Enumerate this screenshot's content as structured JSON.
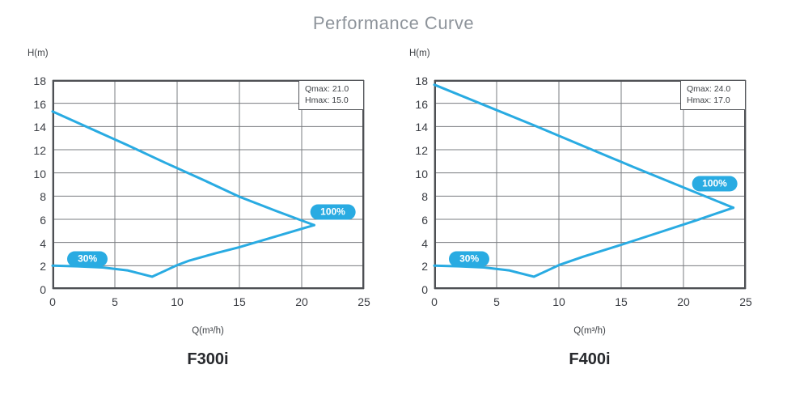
{
  "page": {
    "title": "Performance Curve"
  },
  "colors": {
    "accent_blue": "#29abe2",
    "grid_line": "#7a7c80",
    "plot_border": "#4e5054",
    "tick_text": "#3b3e44",
    "title_gray": "#8e949b"
  },
  "charts": [
    {
      "name": "F300i",
      "y_axis_label": "H(m)",
      "x_axis_label": "Q(m³/h)",
      "info_box": {
        "qmax_text": "Qmax: 21.0",
        "hmax_text": "Hmax: 15.0"
      },
      "chart_data": {
        "type": "line",
        "title": "F300i",
        "xlabel": "Q(m³/h)",
        "ylabel": "H(m)",
        "xlim": [
          0,
          25
        ],
        "ylim": [
          0,
          18
        ],
        "x_ticks": [
          0,
          5,
          10,
          15,
          20,
          25
        ],
        "y_ticks": [
          0,
          2,
          4,
          6,
          8,
          10,
          12,
          14,
          16,
          18
        ],
        "grid": true,
        "qmax": 21.0,
        "hmax": 15.0,
        "series": [
          {
            "name": "100%",
            "points": [
              [
                0,
                15.3
              ],
              [
                3,
                13.85
              ],
              [
                6,
                12.4
              ],
              [
                9,
                10.9
              ],
              [
                12,
                9.45
              ],
              [
                15,
                7.95
              ],
              [
                18,
                6.7
              ],
              [
                21,
                5.5
              ]
            ]
          },
          {
            "name": "30%",
            "points": [
              [
                0,
                2.0
              ],
              [
                2,
                1.95
              ],
              [
                4,
                1.85
              ],
              [
                6,
                1.6
              ],
              [
                8,
                1.05
              ],
              [
                9,
                1.55
              ],
              [
                10,
                2.05
              ],
              [
                11,
                2.45
              ],
              [
                13,
                3.05
              ],
              [
                15,
                3.6
              ],
              [
                18,
                4.55
              ],
              [
                21,
                5.5
              ]
            ]
          }
        ],
        "annotations": [
          {
            "label": "30%",
            "x": 2.8,
            "y": 2.6
          },
          {
            "label": "100%",
            "x": 22.5,
            "y": 6.6
          }
        ]
      }
    },
    {
      "name": "F400i",
      "y_axis_label": "H(m)",
      "x_axis_label": "Q(m³/h)",
      "info_box": {
        "qmax_text": "Qmax: 24.0",
        "hmax_text": "Hmax: 17.0"
      },
      "chart_data": {
        "type": "line",
        "title": "F400i",
        "xlabel": "Q(m³/h)",
        "ylabel": "H(m)",
        "xlim": [
          0,
          25
        ],
        "ylim": [
          0,
          18
        ],
        "x_ticks": [
          0,
          5,
          10,
          15,
          20,
          25
        ],
        "y_ticks": [
          0,
          2,
          4,
          6,
          8,
          10,
          12,
          14,
          16,
          18
        ],
        "grid": true,
        "qmax": 24.0,
        "hmax": 17.0,
        "series": [
          {
            "name": "100%",
            "points": [
              [
                0,
                17.6
              ],
              [
                4,
                15.85
              ],
              [
                8,
                14.1
              ],
              [
                12,
                12.3
              ],
              [
                16,
                10.5
              ],
              [
                20,
                8.75
              ],
              [
                24,
                7.0
              ]
            ]
          },
          {
            "name": "30%",
            "points": [
              [
                0,
                2.0
              ],
              [
                2,
                1.95
              ],
              [
                4,
                1.85
              ],
              [
                6,
                1.6
              ],
              [
                8,
                1.05
              ],
              [
                9,
                1.55
              ],
              [
                10,
                2.05
              ],
              [
                12,
                2.8
              ],
              [
                15,
                3.8
              ],
              [
                18,
                4.85
              ],
              [
                21,
                5.9
              ],
              [
                24,
                7.0
              ]
            ]
          }
        ],
        "annotations": [
          {
            "label": "30%",
            "x": 2.8,
            "y": 2.6
          },
          {
            "label": "100%",
            "x": 22.5,
            "y": 9.1
          }
        ]
      }
    }
  ]
}
